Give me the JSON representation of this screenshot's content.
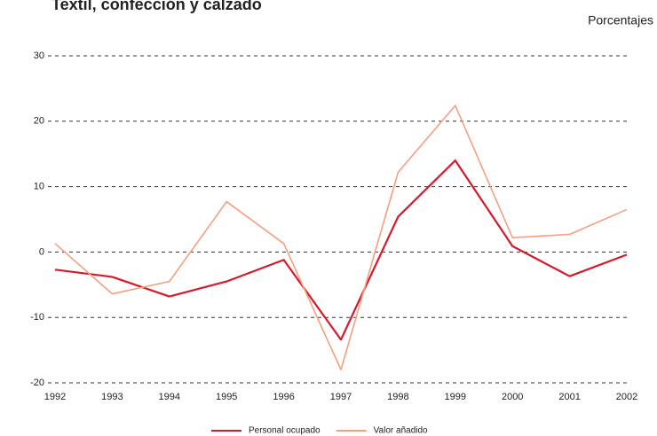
{
  "chart_data": {
    "type": "line",
    "title": "Textil, confección y calzado",
    "subtitle": "Porcentajes",
    "categories": [
      "1992",
      "1993",
      "1994",
      "1995",
      "1996",
      "1997",
      "1998",
      "1999",
      "2000",
      "2001",
      "2002"
    ],
    "series": [
      {
        "name": "Personal ocupado",
        "color": "#d7192b",
        "values": [
          -2.7,
          -3.8,
          -6.8,
          -4.5,
          -1.2,
          -13.4,
          5.4,
          14.0,
          0.9,
          -3.7,
          -0.4
        ]
      },
      {
        "name": "Valor añadido",
        "color": "#f4a07f",
        "values": [
          1.3,
          -6.4,
          -4.5,
          7.7,
          1.3,
          -18.0,
          12.2,
          22.4,
          2.2,
          2.7,
          6.5
        ]
      }
    ],
    "ylim": [
      -20,
      30
    ],
    "yticks": [
      -20,
      -10,
      0,
      10,
      20,
      30
    ],
    "grid": true,
    "legend": "bottom"
  }
}
